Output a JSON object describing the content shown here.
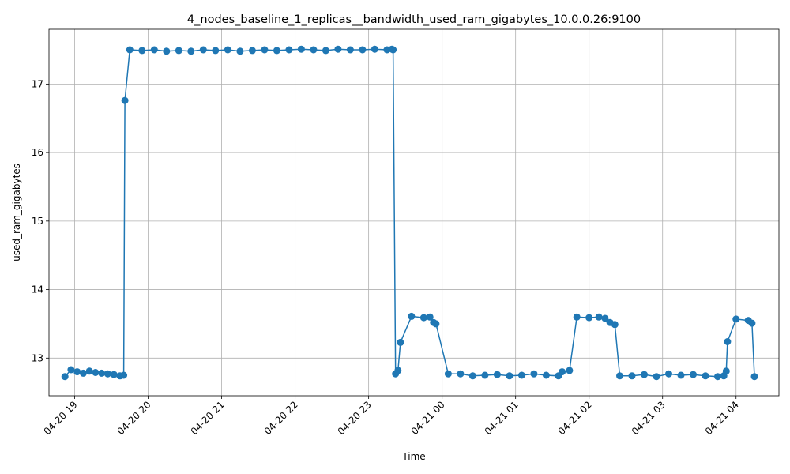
{
  "chart_data": {
    "type": "line",
    "title": "4_nodes_baseline_1_replicas__bandwidth_used_ram_gigabytes_10.0.0.26:9100",
    "xlabel": "Time",
    "ylabel": "used_ram_gigabytes",
    "xlim": [
      "04-20 18:39",
      "04-21 04:35"
    ],
    "ylim": [
      12.45,
      17.8
    ],
    "x_ticks": [
      "04-20 19",
      "04-20 20",
      "04-20 21",
      "04-20 22",
      "04-20 23",
      "04-21 00",
      "04-21 01",
      "04-21 02",
      "04-21 03",
      "04-21 04"
    ],
    "y_ticks": [
      13,
      14,
      15,
      16,
      17
    ],
    "grid": true,
    "markers": true,
    "color": "#1f77b4",
    "series": [
      {
        "x": [
          "04-20 18:52",
          "04-20 18:57",
          "04-20 19:02",
          "04-20 19:07",
          "04-20 19:12",
          "04-20 19:17",
          "04-20 19:22",
          "04-20 19:27",
          "04-20 19:32",
          "04-20 19:37",
          "04-20 19:40",
          "04-20 19:41",
          "04-20 19:45",
          "04-20 19:55",
          "04-20 20:05",
          "04-20 20:15",
          "04-20 20:25",
          "04-20 20:35",
          "04-20 20:45",
          "04-20 20:55",
          "04-20 21:05",
          "04-20 21:15",
          "04-20 21:25",
          "04-20 21:35",
          "04-20 21:45",
          "04-20 21:55",
          "04-20 22:05",
          "04-20 22:15",
          "04-20 22:25",
          "04-20 22:35",
          "04-20 22:45",
          "04-20 22:55",
          "04-20 23:05",
          "04-20 23:15",
          "04-20 23:19",
          "04-20 23:20",
          "04-20 23:22",
          "04-20 23:24",
          "04-20 23:26",
          "04-20 23:35",
          "04-20 23:45",
          "04-20 23:50",
          "04-20 23:53",
          "04-20 23:55",
          "04-21 00:05",
          "04-21 00:15",
          "04-21 00:25",
          "04-21 00:35",
          "04-21 00:45",
          "04-21 00:55",
          "04-21 01:05",
          "04-21 01:15",
          "04-21 01:25",
          "04-21 01:35",
          "04-21 01:38",
          "04-21 01:44",
          "04-21 01:50",
          "04-21 02:00",
          "04-21 02:08",
          "04-21 02:13",
          "04-21 02:17",
          "04-21 02:21",
          "04-21 02:25",
          "04-21 02:35",
          "04-21 02:45",
          "04-21 02:55",
          "04-21 03:05",
          "04-21 03:15",
          "04-21 03:25",
          "04-21 03:35",
          "04-21 03:45",
          "04-21 03:50",
          "04-21 03:52",
          "04-21 03:53",
          "04-21 04:00",
          "04-21 04:10",
          "04-21 04:13",
          "04-21 04:15"
        ],
        "y": [
          12.73,
          12.83,
          12.8,
          12.78,
          12.81,
          12.79,
          12.78,
          12.77,
          12.76,
          12.74,
          12.75,
          16.76,
          17.5,
          17.49,
          17.5,
          17.48,
          17.49,
          17.48,
          17.5,
          17.49,
          17.5,
          17.48,
          17.49,
          17.5,
          17.49,
          17.5,
          17.51,
          17.5,
          17.49,
          17.51,
          17.5,
          17.5,
          17.51,
          17.5,
          17.51,
          17.5,
          12.77,
          12.82,
          13.23,
          13.61,
          13.59,
          13.6,
          13.52,
          13.5,
          12.77,
          12.77,
          12.74,
          12.75,
          12.76,
          12.74,
          12.75,
          12.77,
          12.75,
          12.74,
          12.8,
          12.82,
          13.6,
          13.59,
          13.6,
          13.58,
          13.52,
          13.49,
          12.74,
          12.74,
          12.76,
          12.73,
          12.77,
          12.75,
          12.76,
          12.74,
          12.73,
          12.74,
          12.81,
          13.24,
          13.57,
          13.55,
          13.51,
          12.73
        ]
      }
    ]
  }
}
